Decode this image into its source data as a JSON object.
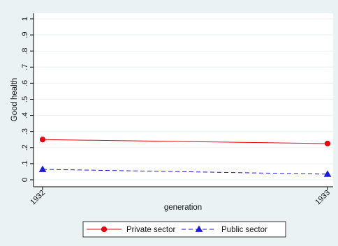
{
  "chart_data": {
    "type": "line",
    "title": "",
    "xlabel": "generation",
    "ylabel": "Good health",
    "x": [
      1932,
      1933
    ],
    "x_tick_labels": [
      "1932",
      "1933"
    ],
    "y_ticks": [
      0,
      0.1,
      0.2,
      0.3,
      0.4,
      0.5,
      0.6,
      0.7,
      0.8,
      0.9,
      1
    ],
    "y_tick_labels": [
      "0",
      ".1",
      ".2",
      ".3",
      ".4",
      ".5",
      ".6",
      ".7",
      ".8",
      ".9",
      "1"
    ],
    "ylim": [
      0,
      1
    ],
    "grid": "horizontal",
    "legend_position": "bottom",
    "series": [
      {
        "name": "Private sector",
        "values": [
          0.25,
          0.225
        ],
        "color": "#e8000b",
        "marker": "circle",
        "line_style": "solid"
      },
      {
        "name": "Public sector",
        "values": [
          0.065,
          0.035
        ],
        "color": "#1a1adb",
        "marker": "triangle",
        "line_style": "dashed"
      }
    ],
    "colors": {
      "outer_background": "#eaf2f3",
      "plot_background": "#ffffff",
      "grid": "#eaf2f3"
    }
  }
}
